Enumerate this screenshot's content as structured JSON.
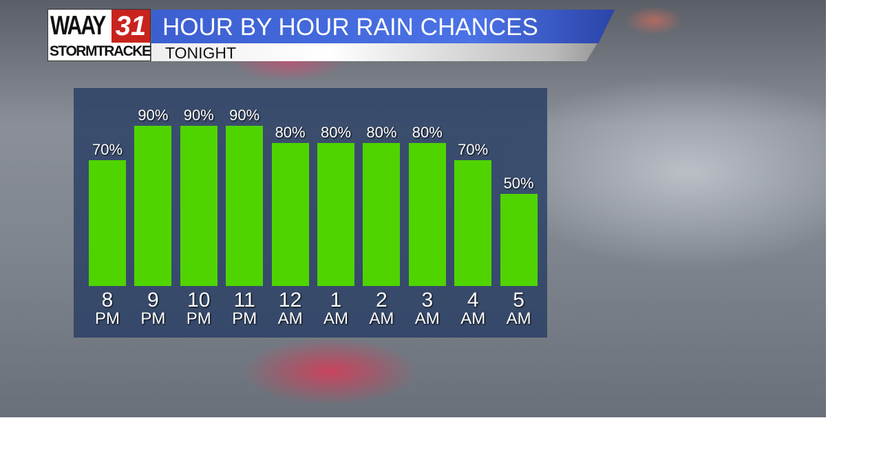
{
  "logo": {
    "station": "WAAY",
    "channel": "31",
    "brand": "STORMTRACKER"
  },
  "header": {
    "title": "HOUR BY HOUR RAIN CHANCES",
    "subtitle": "TONIGHT"
  },
  "colors": {
    "bar": "#4fd400",
    "title_bar": "#4b72e6",
    "panel": "#283e64"
  },
  "chart_data": {
    "type": "bar",
    "title": "HOUR BY HOUR RAIN CHANCES",
    "subtitle": "TONIGHT",
    "categories": [
      [
        "8",
        "PM"
      ],
      [
        "9",
        "PM"
      ],
      [
        "10",
        "PM"
      ],
      [
        "11",
        "PM"
      ],
      [
        "12",
        "AM"
      ],
      [
        "1",
        "AM"
      ],
      [
        "2",
        "AM"
      ],
      [
        "3",
        "AM"
      ],
      [
        "4",
        "AM"
      ],
      [
        "5",
        "AM"
      ]
    ],
    "values": [
      70,
      90,
      90,
      90,
      80,
      80,
      80,
      80,
      70,
      50
    ],
    "value_labels": [
      "70%",
      "90%",
      "90%",
      "90%",
      "80%",
      "80%",
      "80%",
      "80%",
      "70%",
      "50%"
    ],
    "unit": "%",
    "grid": false
  }
}
